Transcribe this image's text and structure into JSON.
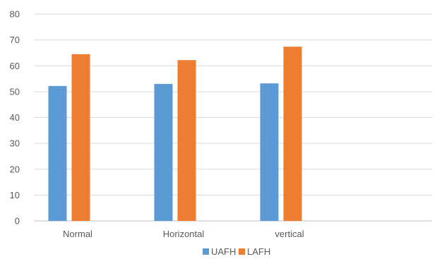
{
  "chart_data": {
    "type": "bar",
    "title": "",
    "xlabel": "",
    "ylabel": "",
    "categories": [
      "Normal",
      "Horizontal",
      "vertical"
    ],
    "series": [
      {
        "name": "UAFH",
        "color": "#5b9bd5",
        "values": [
          52.2,
          53.0,
          53.2
        ]
      },
      {
        "name": "LAFH",
        "color": "#ed7d31",
        "values": [
          64.5,
          62.2,
          67.4
        ]
      }
    ],
    "ylim": [
      0,
      80
    ],
    "yticks": [
      0,
      10,
      20,
      30,
      40,
      50,
      60,
      70,
      80
    ],
    "grid": true,
    "legend_position": "bottom"
  }
}
